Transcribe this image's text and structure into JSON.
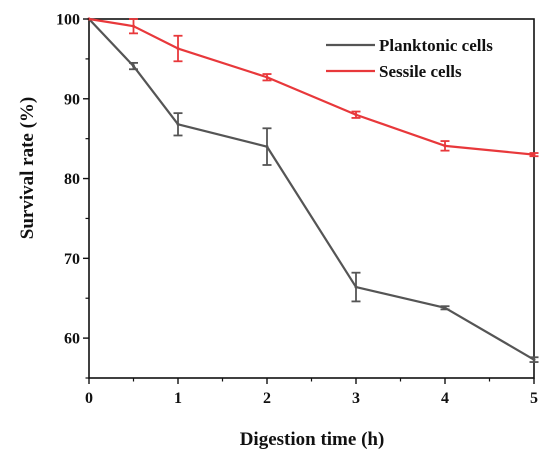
{
  "chart_data": {
    "type": "line",
    "xlabel": "Digestion time (h)",
    "ylabel": "Survival rate (%)",
    "xlim": [
      0,
      5
    ],
    "ylim": [
      55,
      100
    ],
    "xticks": [
      0,
      1,
      2,
      3,
      4,
      5
    ],
    "yticks": [
      60,
      70,
      80,
      90,
      100
    ],
    "xtick_labels": [
      "0",
      "1",
      "2",
      "3",
      "4",
      "5"
    ],
    "ytick_labels": [
      "60",
      "70",
      "80",
      "90",
      "100"
    ],
    "grid": false,
    "legend_position": "top-right",
    "series": [
      {
        "name": "Planktonic cells",
        "color": "#555555",
        "x": [
          0,
          0.5,
          1,
          2,
          3,
          4,
          5
        ],
        "y": [
          100,
          94.1,
          86.8,
          84.0,
          66.4,
          63.8,
          57.3
        ],
        "error": [
          0,
          0.4,
          1.4,
          2.3,
          1.8,
          0.2,
          0.3
        ]
      },
      {
        "name": "Sessile cells",
        "color": "#e8383b",
        "x": [
          0,
          0.5,
          1,
          2,
          3,
          4,
          5
        ],
        "y": [
          100,
          99.1,
          96.3,
          92.7,
          88.0,
          84.1,
          83.0
        ],
        "error": [
          0,
          0.9,
          1.6,
          0.4,
          0.4,
          0.6,
          0.2
        ]
      }
    ]
  }
}
